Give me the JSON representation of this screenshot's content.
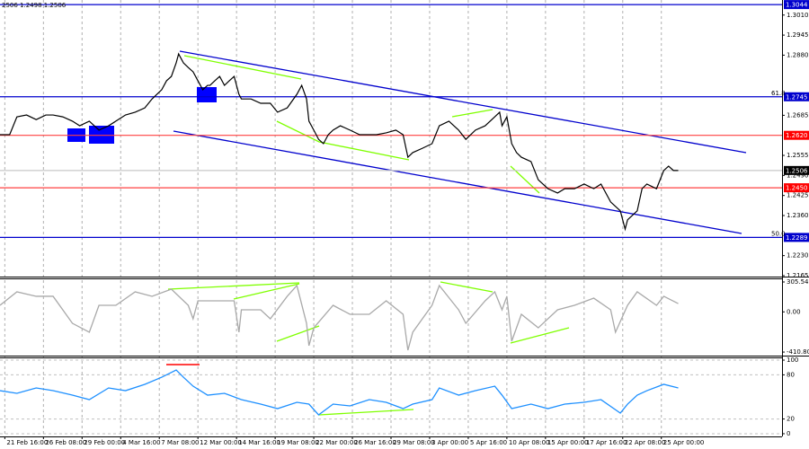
{
  "chart_data": [
    {
      "type": "line",
      "header": "2506 1.2498 1.2506",
      "color": "#000000",
      "xlim": [
        0,
        324
      ],
      "ylim": [
        1.2162,
        1.3053
      ],
      "x": [
        0,
        4,
        7,
        11,
        15,
        19,
        22,
        26,
        30,
        33,
        37,
        41,
        45,
        48,
        52,
        56,
        60,
        63,
        67,
        69,
        71,
        73,
        74,
        76,
        78,
        80,
        82,
        84,
        86,
        87,
        89,
        91,
        93,
        95,
        97,
        99,
        100,
        104,
        108,
        112,
        115,
        119,
        123,
        125,
        127,
        128,
        130,
        132,
        134,
        136,
        138,
        141,
        145,
        149,
        153,
        156,
        160,
        164,
        167,
        169,
        171,
        175,
        179,
        182,
        186,
        190,
        193,
        197,
        201,
        205,
        207,
        208,
        210,
        212,
        214,
        216,
        220,
        223,
        227,
        231,
        234,
        238,
        242,
        246,
        249,
        253,
        257,
        259,
        260,
        264,
        266,
        268,
        272,
        275,
        277,
        279,
        281
      ],
      "values": [
        1.2622,
        1.2622,
        1.268,
        1.2686,
        1.2671,
        1.2686,
        1.2686,
        1.268,
        1.2666,
        1.2651,
        1.2666,
        1.2637,
        1.2651,
        1.2666,
        1.2686,
        1.2695,
        1.2709,
        1.2738,
        1.2768,
        1.2797,
        1.2811,
        1.2855,
        1.2884,
        1.2855,
        1.284,
        1.2826,
        1.2797,
        1.2768,
        1.2782,
        1.2782,
        1.2797,
        1.2811,
        1.2782,
        1.2797,
        1.2811,
        1.2753,
        1.2738,
        1.2738,
        1.2724,
        1.2724,
        1.2695,
        1.2709,
        1.2753,
        1.2782,
        1.2738,
        1.2666,
        1.2637,
        1.2607,
        1.2593,
        1.2622,
        1.2637,
        1.2651,
        1.2637,
        1.2622,
        1.2622,
        1.2622,
        1.2628,
        1.2637,
        1.2622,
        1.2549,
        1.2564,
        1.2578,
        1.2593,
        1.2651,
        1.2666,
        1.2637,
        1.2607,
        1.2637,
        1.2651,
        1.268,
        1.2695,
        1.2651,
        1.268,
        1.2593,
        1.2564,
        1.2549,
        1.2535,
        1.2476,
        1.2447,
        1.2433,
        1.2447,
        1.2447,
        1.2462,
        1.2447,
        1.2462,
        1.2404,
        1.2375,
        1.2316,
        1.2346,
        1.2375,
        1.2447,
        1.2462,
        1.2447,
        1.2506,
        1.252,
        1.2506,
        1.2506
      ],
      "yticks": [
        {
          "value": 1.301,
          "label": "1.3010"
        },
        1.2945,
        {
          "value": 1.288,
          "label": "1.2880"
        },
        1.2685,
        1.2555,
        {
          "value": 1.249,
          "label": "1.2490"
        },
        1.2425,
        {
          "value": 1.236,
          "label": "1.2360"
        },
        {
          "value": 1.223,
          "label": "1.2230"
        },
        1.2165
      ],
      "levels": [
        {
          "value": 1.3044,
          "label": "1.3044",
          "color": "#0000cd",
          "box_color": "#0000cd"
        },
        {
          "value": 1.2745,
          "label": "1.2745",
          "tag": "61.8",
          "color": "#0000cd",
          "box_color": "#0000cd"
        },
        {
          "value": 1.262,
          "label": "1.2620",
          "color": "#ff4040",
          "box_color": "#ff0000"
        },
        {
          "value": 1.2506,
          "label": "1.2506",
          "color": "#c8c8c8",
          "box_color": "#000000"
        },
        {
          "value": 1.245,
          "label": "1.2450",
          "color": "#ff4040",
          "box_color": "#ff0000"
        },
        {
          "value": 1.2289,
          "label": "1.2289",
          "tag": "50.0",
          "color": "#0000cd",
          "box_color": "#0000cd"
        }
      ]
    },
    {
      "type": "line",
      "color": "#a9a9a9",
      "xlim": [
        0,
        324
      ],
      "ylim": [
        -447,
        333
      ],
      "x": [
        0,
        7,
        15,
        22,
        30,
        37,
        41,
        48,
        56,
        63,
        71,
        78,
        80,
        82,
        89,
        97,
        99,
        100,
        108,
        112,
        119,
        123,
        127,
        128,
        130,
        138,
        145,
        153,
        160,
        167,
        169,
        171,
        179,
        182,
        190,
        193,
        201,
        205,
        208,
        210,
        212,
        216,
        223,
        231,
        238,
        246,
        253,
        255,
        260,
        264,
        272,
        275,
        281
      ],
      "values": [
        67,
        205,
        159,
        159,
        -117,
        -208,
        67,
        67,
        205,
        159,
        232,
        67,
        -71,
        113,
        113,
        113,
        -208,
        21,
        21,
        -71,
        159,
        269,
        -117,
        -346,
        -163,
        67,
        -25,
        -25,
        113,
        -25,
        -392,
        -208,
        67,
        269,
        21,
        -117,
        113,
        205,
        21,
        159,
        -300,
        -25,
        -163,
        21,
        67,
        140,
        21,
        -208,
        67,
        205,
        67,
        159,
        85
      ],
      "yticks": [
        305.5401,
        {
          "value": 0,
          "label": "0.00"
        },
        -410.803
      ]
    },
    {
      "type": "line",
      "color": "#1e90ff",
      "xlim": [
        0,
        324
      ],
      "ylim": [
        -3.7,
        103.7
      ],
      "x": [
        0,
        7,
        15,
        22,
        30,
        37,
        45,
        52,
        60,
        67,
        73,
        76,
        80,
        86,
        93,
        100,
        108,
        115,
        123,
        128,
        132,
        138,
        145,
        153,
        160,
        167,
        171,
        179,
        182,
        190,
        197,
        205,
        208,
        212,
        220,
        227,
        234,
        242,
        249,
        257,
        260,
        264,
        268,
        275,
        281
      ],
      "values": [
        58.5,
        54.9,
        62.2,
        58.5,
        52.4,
        46.3,
        62.2,
        58.5,
        67.1,
        76.8,
        86.6,
        76.8,
        64.6,
        52.4,
        54.9,
        46.3,
        40.2,
        34.1,
        42.7,
        40.2,
        25.6,
        40.2,
        37.8,
        46.3,
        42.7,
        34.1,
        40.2,
        46.3,
        62.2,
        52.4,
        58.5,
        64.6,
        52.4,
        34.1,
        40.2,
        34.1,
        40.2,
        42.7,
        46.3,
        28.0,
        40.2,
        52.4,
        58.5,
        67.1,
        62.2
      ],
      "yticks": [
        100,
        80,
        20,
        0
      ],
      "xticks": [
        {
          "value": 2,
          "label": "21 Feb 16:00"
        },
        {
          "value": 18,
          "label": "26 Feb 08:00"
        },
        {
          "value": 34,
          "label": "29 Feb 00:00"
        },
        {
          "value": 50,
          "label": "4 Mar 16:00"
        },
        {
          "value": 66,
          "label": "7 Mar 08:00"
        },
        {
          "value": 82,
          "label": "12 Mar 00:00"
        },
        {
          "value": 98,
          "label": "14 Mar 16:00"
        },
        {
          "value": 114,
          "label": "19 Mar 08:00"
        },
        {
          "value": 130,
          "label": "22 Mar 00:00"
        },
        {
          "value": 146,
          "label": "26 Mar 16:00"
        },
        {
          "value": 162,
          "label": "29 Mar 08:00"
        },
        {
          "value": 178,
          "label": "3 Apr 00:00"
        },
        {
          "value": 194,
          "label": "5 Apr 16:00"
        },
        {
          "value": 210,
          "label": "10 Apr 08:00"
        },
        {
          "value": 226,
          "label": "15 Apr 00:00"
        },
        {
          "value": 242,
          "label": "17 Apr 16:00"
        },
        {
          "value": 258,
          "label": "22 Apr 08:00"
        },
        {
          "value": 274,
          "label": "25 Apr 00:00"
        }
      ]
    }
  ]
}
